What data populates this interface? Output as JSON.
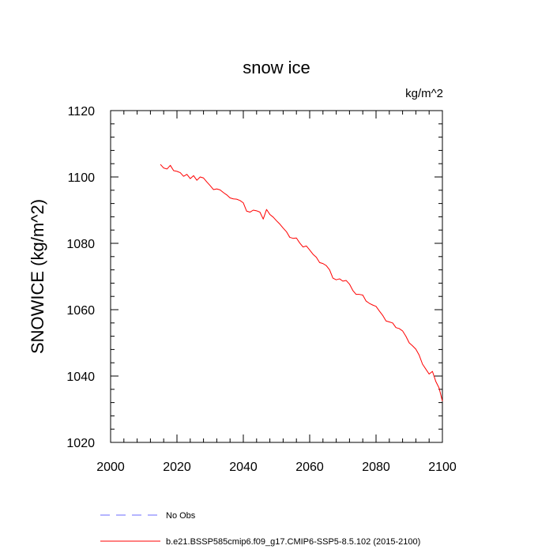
{
  "chart_data": {
    "type": "line",
    "title": "snow ice",
    "units": "kg/m^2",
    "ylabel": "SNOWICE  (kg/m^2)",
    "xlabel": "",
    "xlim": [
      2000,
      2100
    ],
    "ylim": [
      1020,
      1120
    ],
    "x_ticks": [
      2000,
      2020,
      2040,
      2060,
      2080,
      2100
    ],
    "y_ticks": [
      1020,
      1040,
      1060,
      1080,
      1100,
      1120
    ],
    "grid": false,
    "series": [
      {
        "name": "b.e21.BSSP585cmip6.f09_g17.CMIP6-SSP5-8.5.102 (2015-2100)",
        "color": "#ff0000",
        "style": "solid",
        "x": [
          2015,
          2016,
          2017,
          2018,
          2019,
          2020,
          2021,
          2022,
          2023,
          2024,
          2025,
          2026,
          2027,
          2028,
          2029,
          2030,
          2031,
          2032,
          2033,
          2034,
          2035,
          2036,
          2037,
          2038,
          2039,
          2040,
          2041,
          2042,
          2043,
          2044,
          2045,
          2046,
          2047,
          2048,
          2049,
          2050,
          2051,
          2052,
          2053,
          2054,
          2055,
          2056,
          2057,
          2058,
          2059,
          2060,
          2061,
          2062,
          2063,
          2064,
          2065,
          2066,
          2067,
          2068,
          2069,
          2070,
          2071,
          2072,
          2073,
          2074,
          2075,
          2076,
          2077,
          2078,
          2079,
          2080,
          2081,
          2082,
          2083,
          2084,
          2085,
          2086,
          2087,
          2088,
          2089,
          2090,
          2091,
          2092,
          2093,
          2094,
          2095,
          2096,
          2097,
          2098,
          2099,
          2100
        ],
        "values": [
          1103.8,
          1102.7,
          1102.4,
          1103.5,
          1101.9,
          1101.7,
          1101.3,
          1100.2,
          1100.8,
          1099.5,
          1100.4,
          1099.0,
          1100.0,
          1099.7,
          1098.5,
          1097.4,
          1096.2,
          1096.4,
          1096.1,
          1095.3,
          1094.6,
          1093.7,
          1093.4,
          1093.3,
          1092.9,
          1092.2,
          1089.7,
          1089.4,
          1090.0,
          1089.8,
          1089.4,
          1087.3,
          1090.2,
          1088.7,
          1087.9,
          1086.8,
          1085.8,
          1084.6,
          1083.5,
          1081.8,
          1081.5,
          1081.6,
          1080.1,
          1078.9,
          1079.2,
          1078.0,
          1076.7,
          1075.8,
          1074.2,
          1073.9,
          1073.3,
          1072.0,
          1069.5,
          1069.0,
          1069.3,
          1068.6,
          1068.8,
          1067.7,
          1065.8,
          1064.6,
          1064.6,
          1064.4,
          1062.6,
          1061.9,
          1061.4,
          1061.0,
          1059.6,
          1058.3,
          1056.6,
          1056.3,
          1056.0,
          1054.6,
          1054.3,
          1053.6,
          1052.0,
          1050.0,
          1049.1,
          1048.1,
          1046.3,
          1043.6,
          1042.1,
          1040.6,
          1041.4,
          1038.4,
          1036.4,
          1032.4
        ]
      },
      {
        "name": "No Obs",
        "color": "#6b6bff",
        "style": "dashed",
        "x": [],
        "values": []
      }
    ],
    "legend_placement": "bottom"
  }
}
